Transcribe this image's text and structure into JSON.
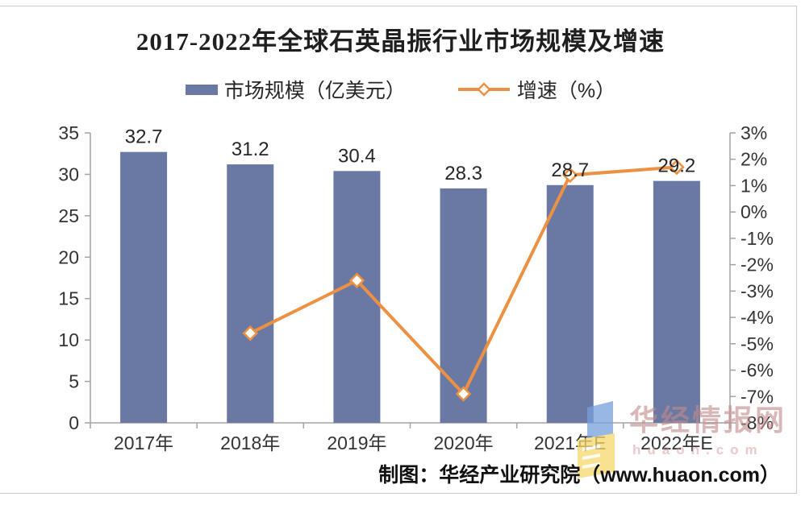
{
  "chart_data": {
    "type": "bar+line",
    "title": "2017-2022年全球石英晶振行业市场规模及增速",
    "categories": [
      "2017年",
      "2018年",
      "2019年",
      "2020年",
      "2021年E",
      "2022年E"
    ],
    "series": [
      {
        "name": "市场规模（亿美元）",
        "type": "bar",
        "axis": "left",
        "values": [
          32.7,
          31.2,
          30.4,
          28.3,
          28.7,
          29.2
        ],
        "labels": [
          "32.7",
          "31.2",
          "30.4",
          "28.3",
          "28.7",
          "29.2"
        ]
      },
      {
        "name": "增速（%）",
        "type": "line",
        "axis": "right",
        "marker": "diamond",
        "values": [
          null,
          -4.6,
          -2.6,
          -6.9,
          1.4,
          1.7
        ]
      }
    ],
    "left_axis": {
      "min": 0,
      "max": 35,
      "step": 5
    },
    "right_axis": {
      "min": -8,
      "max": 3,
      "step": 1,
      "suffix": "%"
    },
    "legend_position": "top",
    "grid": false
  },
  "source_note": "制图：华经产业研究院（www.huaon.com）",
  "watermark": {
    "brand": "华经情报网",
    "domain": "huaon.com"
  },
  "colors": {
    "bar": "#6a79a4",
    "line": "#ec9142",
    "marker_fill": "#fffdf6",
    "axis": "#a3a3a3",
    "tick_text": "#333333",
    "bar_label_text": "#262626",
    "title_text": "#1f1f1f",
    "watermark_pink": "rgba(195,138,138,0.62)"
  }
}
